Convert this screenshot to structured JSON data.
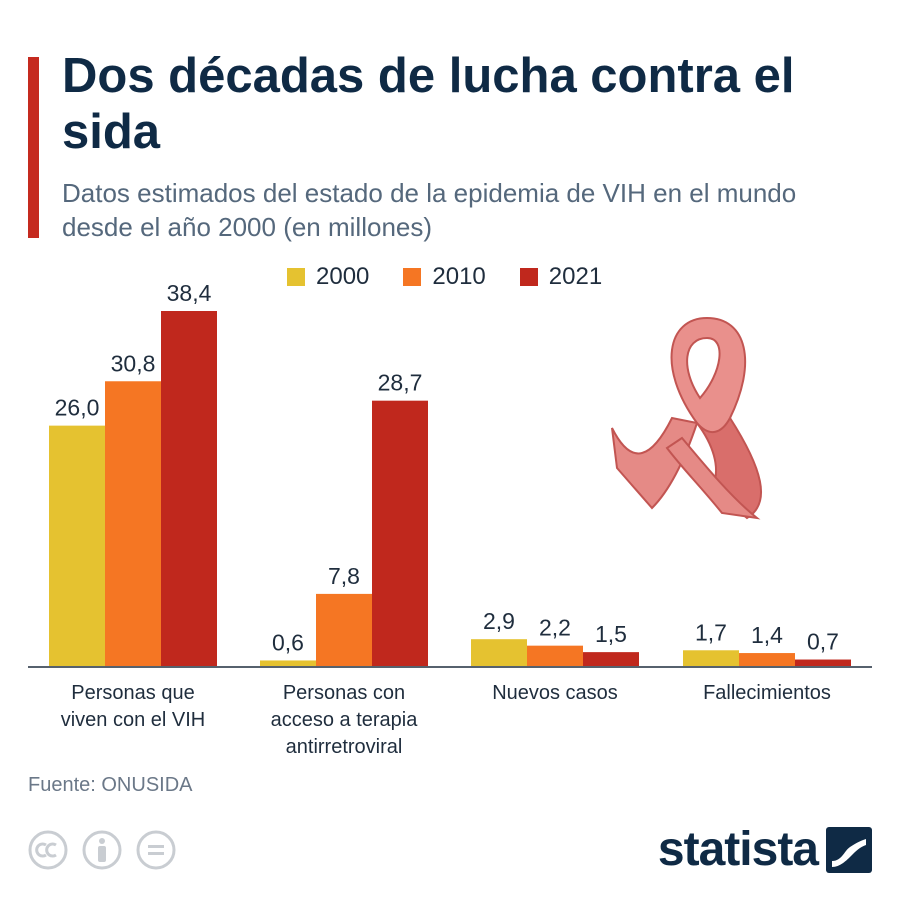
{
  "header": {
    "title": "Dos décadas de lucha contra el sida",
    "subtitle": "Datos estimados del estado de la epidemia de VIH en el mundo desde el año 2000 (en millones)"
  },
  "colors": {
    "accent": "#c52a1f",
    "y2000": "#e5c230",
    "y2010": "#f57623",
    "y2021": "#c0281d",
    "ribbon": "#e58a86"
  },
  "chart_data": {
    "type": "bar",
    "categories": [
      "Personas que viven con el VIH",
      "Personas con acceso a terapia antirretroviral",
      "Nuevos casos",
      "Fallecimientos"
    ],
    "category_lines": [
      [
        "Personas que",
        "viven con el VIH"
      ],
      [
        "Personas con",
        "acceso a terapia",
        "antirretroviral"
      ],
      [
        "Nuevos casos"
      ],
      [
        "Fallecimientos"
      ]
    ],
    "series": [
      {
        "name": "2000",
        "color": "#e5c230",
        "values": [
          26.0,
          0.6,
          2.9,
          1.7
        ],
        "labels": [
          "26,0",
          "0,6",
          "2,9",
          "1,7"
        ]
      },
      {
        "name": "2010",
        "color": "#f57623",
        "values": [
          30.8,
          7.8,
          2.2,
          1.4
        ],
        "labels": [
          "30,8",
          "7,8",
          "2,2",
          "1,4"
        ]
      },
      {
        "name": "2021",
        "color": "#c0281d",
        "values": [
          38.4,
          28.7,
          1.5,
          0.7
        ],
        "labels": [
          "38,4",
          "28,7",
          "1,5",
          "0,7"
        ]
      }
    ],
    "ylim": [
      0,
      38.4
    ],
    "legend": "top",
    "grid": false
  },
  "icons": {
    "ribbon": "aids-ribbon-icon",
    "cc": "cc-icon",
    "by": "attribution-icon",
    "nd": "no-derivatives-icon",
    "brand": "statista-logo-icon"
  },
  "footer": {
    "source": "Fuente: ONUSIDA",
    "brand": "statista"
  }
}
